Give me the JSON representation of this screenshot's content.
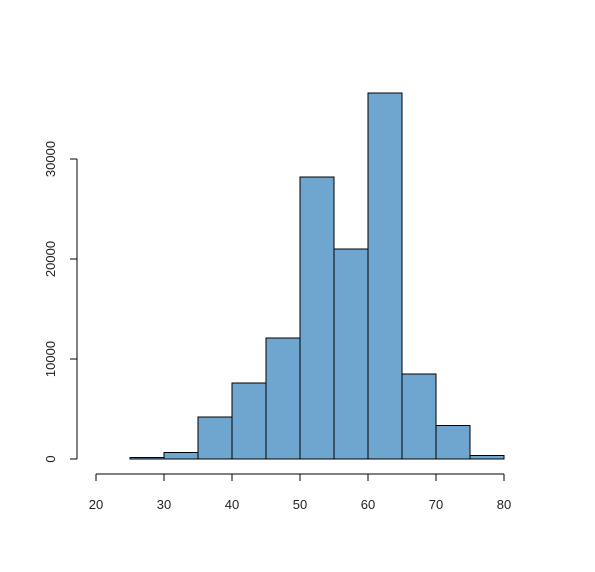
{
  "chart_data": {
    "type": "bar",
    "subtype": "histogram",
    "title": "",
    "xlabel": "",
    "ylabel": "",
    "bin_edges": [
      20,
      25,
      30,
      35,
      40,
      45,
      50,
      55,
      60,
      65,
      70,
      75,
      80
    ],
    "values": [
      0,
      150,
      650,
      4200,
      7600,
      12100,
      28200,
      21000,
      36600,
      8500,
      3350,
      350
    ],
    "xlim": [
      20,
      85
    ],
    "ylim": [
      0,
      36600
    ],
    "x_ticks": [
      20,
      30,
      40,
      50,
      60,
      70,
      80
    ],
    "y_ticks": [
      0,
      10000,
      20000,
      30000
    ],
    "x_tick_labels": [
      "20",
      "30",
      "40",
      "50",
      "60",
      "70",
      "80"
    ],
    "y_tick_labels": [
      "0",
      "10000",
      "20000",
      "30000"
    ],
    "bar_color": "#6fa6cf",
    "edge_color": "#000000",
    "grid": false,
    "legend": "none"
  }
}
